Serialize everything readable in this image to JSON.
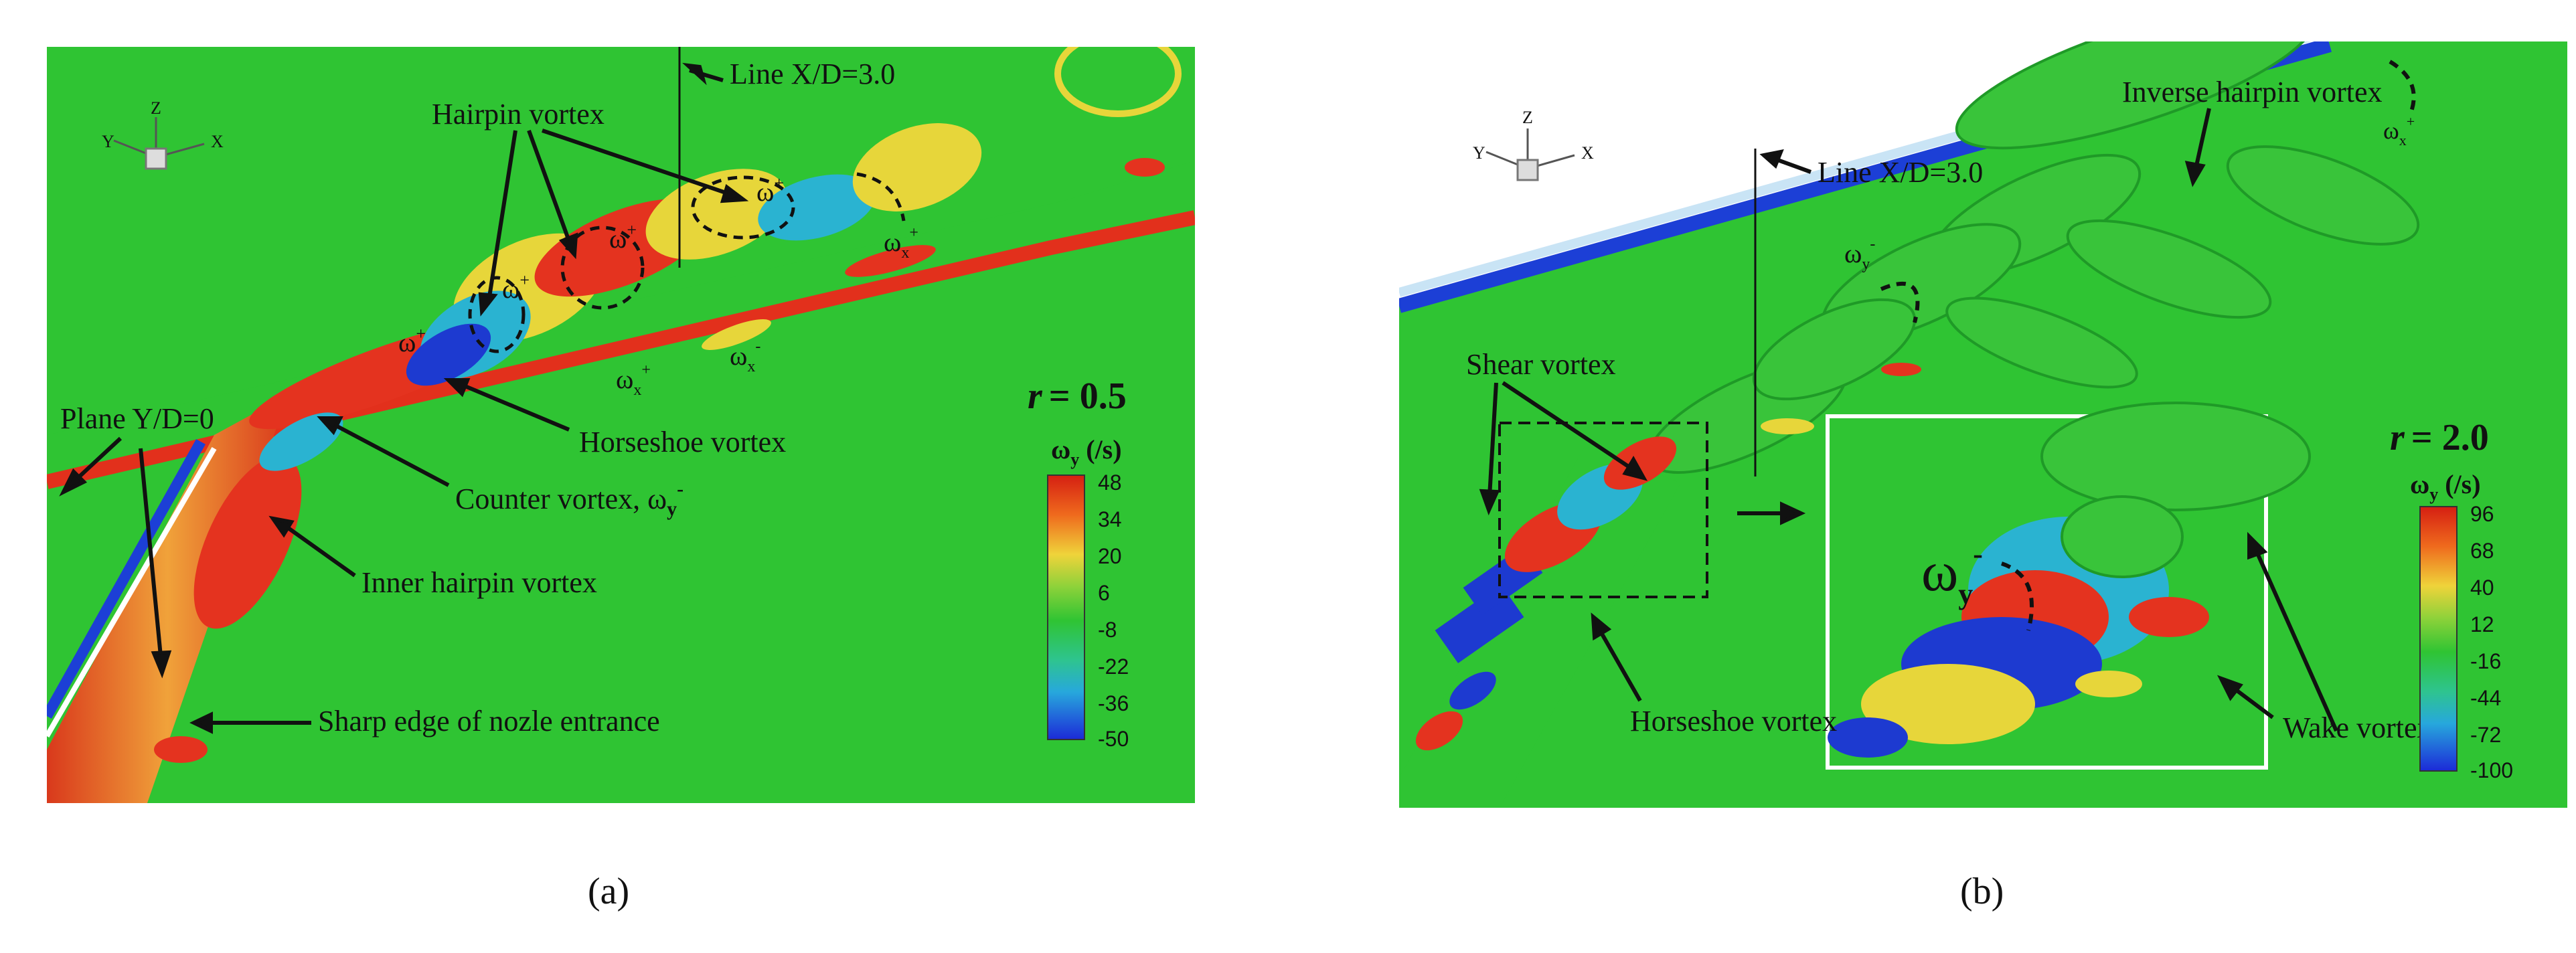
{
  "panel_a": {
    "axes_triad": {
      "z": "Z",
      "y": "Y",
      "x": "X"
    },
    "line_label": "Line X/D=3.0",
    "plane_label": "Plane Y/D=0",
    "hairpin_label": "Hairpin vortex",
    "horseshoe_label": "Horseshoe vortex",
    "counter_label": "Counter vortex, ω",
    "counter_sub": "y",
    "counter_sup": "-",
    "inner_hairpin_label": "Inner hairpin vortex",
    "sharp_edge_label": "Sharp edge of nozle entrance",
    "omega_symbol": "ω",
    "plus": "+",
    "minus": "-",
    "x_sub": "x",
    "r_label": "r",
    "r_value": "= 0.5",
    "colorbar": {
      "title": "ω",
      "title_sub": "y",
      "unit": "(/s)",
      "ticks": [
        "48",
        "34",
        "20",
        "6",
        "-8",
        "-22",
        "-36",
        "-50"
      ]
    },
    "caption": "(a)"
  },
  "panel_b": {
    "axes_triad": {
      "z": "Z",
      "y": "Y",
      "x": "X"
    },
    "line_label": "Line X/D=3.0",
    "inverse_hairpin_label": "Inverse hairpin vortex",
    "shear_label": "Shear vortex",
    "horseshoe_label": "Horseshoe vortex",
    "wake_label": "Wake vortex",
    "omega_symbol": "ω",
    "plus": "+",
    "minus": "-",
    "y_sub": "y",
    "x_sub": "x",
    "r_label": "r",
    "r_value": "= 2.0",
    "colorbar": {
      "title": "ω",
      "title_sub": "y",
      "unit": "(/s)",
      "ticks": [
        "96",
        "68",
        "40",
        "12",
        "-16",
        "-44",
        "-72",
        "-100"
      ]
    },
    "caption": "(b)"
  },
  "colors": {
    "background_field": "#2fc433",
    "wall_red": "#e2301c",
    "wall_blue": "#1c3fd6",
    "vortex_red": "#e4331f",
    "vortex_yellow": "#e7d63a",
    "vortex_cyan": "#2ab3d1",
    "vortex_blue": "#1d3ad0"
  }
}
